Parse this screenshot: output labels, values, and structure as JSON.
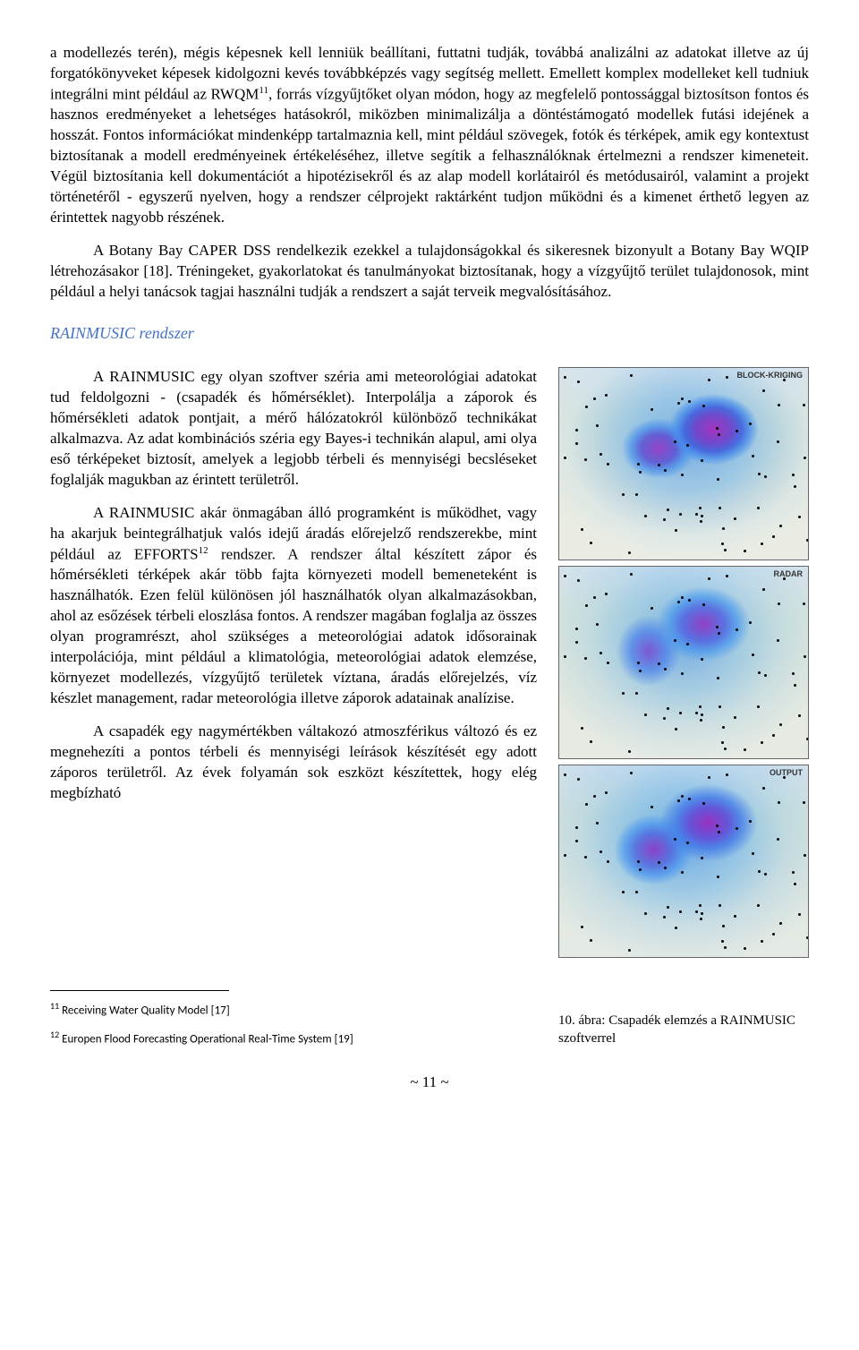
{
  "para1": "a modellezés terén), mégis képesnek kell lenniük beállítani, futtatni tudják, továbbá analizálni az adatokat illetve az új forgatókönyveket képesek kidolgozni kevés továbbképzés vagy segítség mellett. Emellett komplex modelleket kell tudniuk integrálni mint például az RWQM",
  "fn11_mark": "11",
  "para1b": ", forrás vízgyűjtőket olyan módon, hogy az megfelelő pontossággal biztosítson fontos és hasznos eredményeket a lehetséges hatásokról, miközben minimalizálja a döntéstámogató modellek futási idejének a hosszát. Fontos információkat mindenképp tartalmaznia kell, mint például szövegek, fotók és térképek, amik egy kontextust biztosítanak a modell eredményeinek értékeléséhez, illetve segítik a felhasználóknak értelmezni a rendszer kimeneteit. Végül biztosítania kell dokumentációt a hipotézisekről és az alap modell korlátairól és metódusairól, valamint a projekt történetéről - egyszerű nyelven, hogy a rendszer célprojekt raktárként tudjon működni és a kimenet érthető legyen az érintettek nagyobb részének.",
  "para2": "A Botany Bay CAPER DSS rendelkezik ezekkel a tulajdonságokkal és sikeresnek bizonyult a Botany Bay WQIP létrehozásakor [18]. Tréningeket, gyakorlatokat és tanulmányokat biztosítanak, hogy a vízgyűjtő terület tulajdonosok, mint például a helyi tanácsok tagjai használni tudják a rendszert a saját terveik megvalósításához.",
  "section_title": "RAINMUSIC rendszer",
  "para3a": "A RAINMUSIC egy olyan szoftver széria ami meteorológiai adatokat tud feldolgozni - (csapadék és hőmérséklet). Interpolálja a záporok és hőmérsékleti adatok pontjait, a mérő hálózatokról különböző technikákat alkalmazva. Az adat kombinációs széria egy Bayes-i technikán alapul, ami olya eső térképeket biztosít, amelyek a legjobb térbeli és mennyiségi becsléseket foglalják magukban az érintett területről.",
  "para3b_a": "A RAINMUSIC akár önmagában álló programként is működhet, vagy ha akarjuk beintegrálhatjuk valós idejű áradás előrejelző rendszerekbe, mint például az EFFORTS",
  "fn12_mark": "12",
  "para3b_b": " rendszer. A rendszer által készített zápor és hőmérsékleti térképek akár több fajta környezeti modell bemeneteként is használhatók. Ezen felül különösen jól használhatók olyan alkalmazásokban, ahol az esőzések térbeli eloszlása fontos. A rendszer magában foglalja az összes olyan programrészt, ahol szükséges a meteorológiai adatok idősorainak interpolációja, mint például a klimatológia, meteorológiai adatok elemzése, környezet modellezés, vízgyűjtő területek víztana, áradás előrejelzés, víz készlet management, radar meteorológia illetve záporok adatainak analízise.",
  "para3c": "A csapadék egy nagymértékben váltakozó atmoszférikus változó és ez megnehezíti a pontos térbeli és mennyiségi leírások készítését egy adott záporos területről. Az évek folyamán sok eszközt készítettek, hogy elég megbízható",
  "footnote11": "Receiving Water Quality Model [17]",
  "footnote12": "Europen Flood Forecasting Operational Real-Time System [19]",
  "figure": {
    "panels": [
      {
        "label": "BLOCK-KRIGING"
      },
      {
        "label": "RADAR"
      },
      {
        "label": "OUTPUT"
      }
    ],
    "caption": "10. ábra: Csapadék elemzés a RAINMUSIC szoftverrel",
    "colors": {
      "precip_high": "#9b2ac0",
      "precip_mid": "#4a78e8",
      "precip_low": "#bde0f8",
      "terrain": "#d8dcc5"
    }
  },
  "page_number": "~ 11 ~"
}
